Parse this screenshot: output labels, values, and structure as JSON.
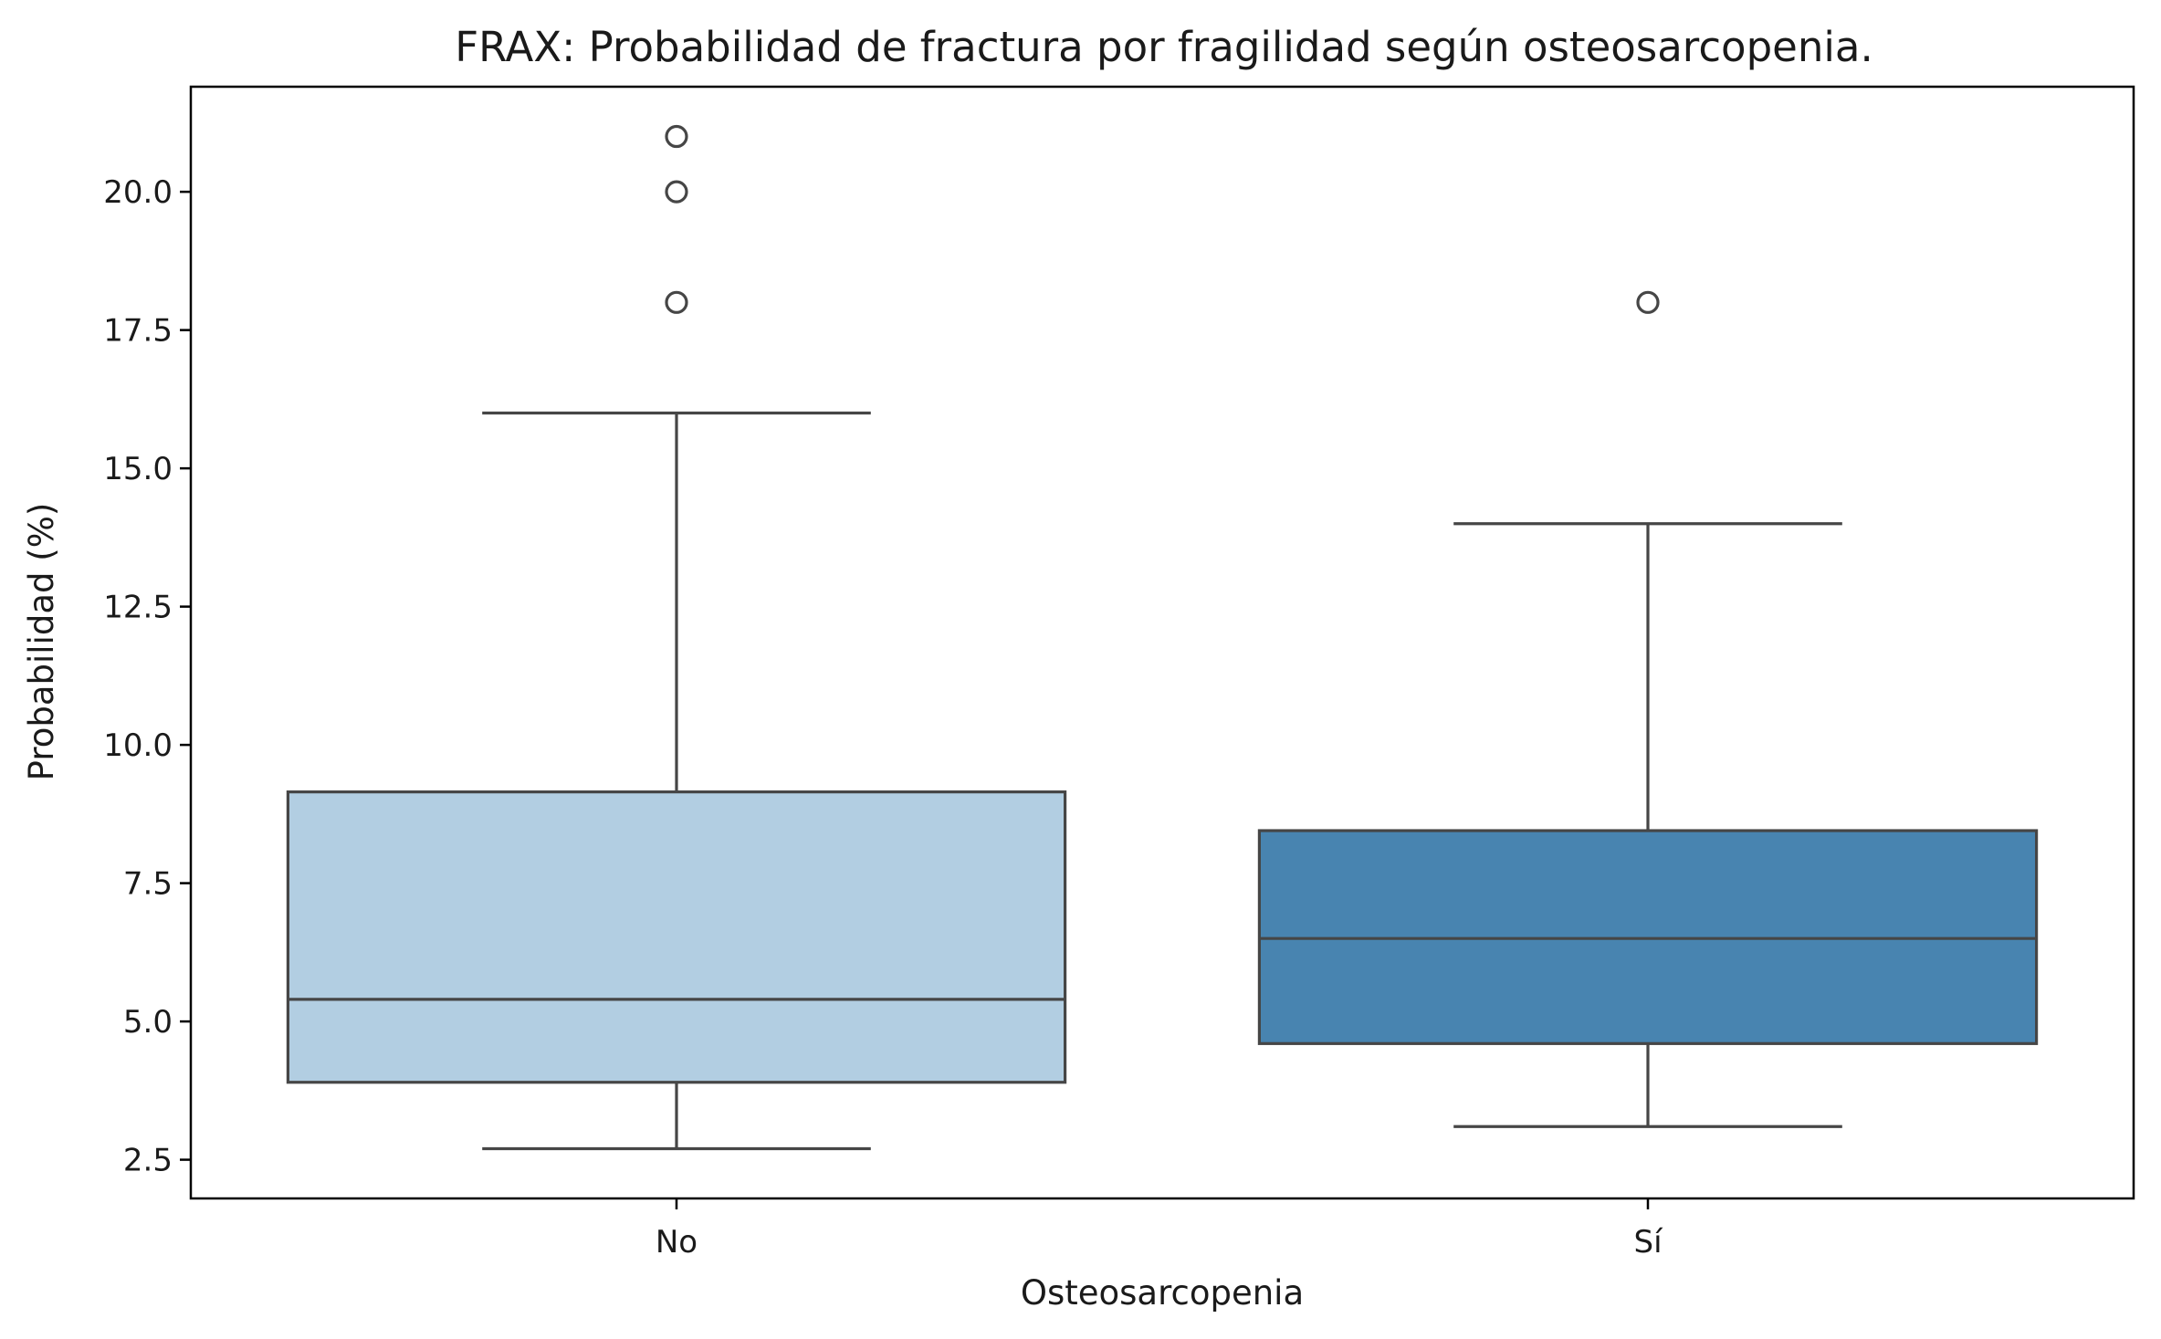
{
  "chart_data": {
    "type": "box",
    "title": "FRAX: Probabilidad de fractura por fragilidad según osteosarcopenia.",
    "xlabel": "Osteosarcopenia",
    "ylabel": "Probabilidad (%)",
    "categories": [
      "No",
      "Sí"
    ],
    "ylim": [
      1.8,
      21.9
    ],
    "yticks": [
      2.5,
      5.0,
      7.5,
      10.0,
      12.5,
      15.0,
      17.5,
      20.0
    ],
    "ytick_labels": [
      "2.5",
      "5.0",
      "7.5",
      "10.0",
      "12.5",
      "15.0",
      "17.5",
      "20.0"
    ],
    "grid": false,
    "legend": "none",
    "boxes": [
      {
        "category": "No",
        "whisker_low": 2.7,
        "q1": 3.9,
        "median": 5.4,
        "q3": 9.15,
        "whisker_high": 16.0,
        "outliers": [
          18.0,
          20.0,
          21.0
        ],
        "color": "#b2cee2"
      },
      {
        "category": "Sí",
        "whisker_low": 3.1,
        "q1": 4.6,
        "median": 6.5,
        "q3": 8.45,
        "whisker_high": 14.0,
        "outliers": [
          18.0
        ],
        "color": "#4884b0"
      }
    ],
    "line_color": "#464646"
  }
}
